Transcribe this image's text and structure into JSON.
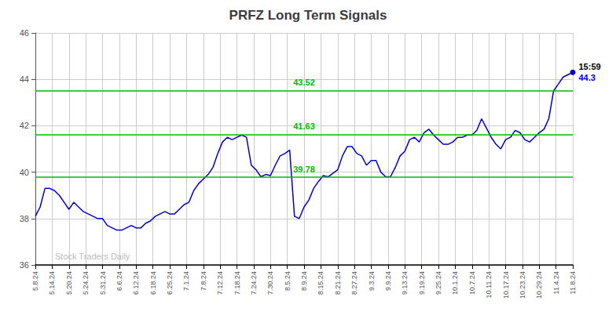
{
  "chart_data": {
    "type": "line",
    "title": "PRFZ Long Term Signals",
    "color": "#0000cc",
    "values": [
      38.1,
      38.5,
      39.3,
      39.3,
      39.2,
      39.0,
      38.7,
      38.4,
      38.7,
      38.5,
      38.3,
      38.2,
      38.1,
      38.0,
      38.0,
      37.7,
      37.6,
      37.5,
      37.5,
      37.6,
      37.7,
      37.6,
      37.6,
      37.8,
      37.9,
      38.1,
      38.2,
      38.3,
      38.2,
      38.2,
      38.4,
      38.6,
      38.7,
      39.2,
      39.5,
      39.7,
      39.9,
      40.2,
      40.8,
      41.3,
      41.5,
      41.4,
      41.5,
      41.6,
      41.5,
      40.3,
      40.1,
      39.8,
      39.9,
      39.85,
      40.3,
      40.7,
      40.8,
      40.95,
      38.1,
      38.0,
      38.5,
      38.8,
      39.3,
      39.6,
      39.85,
      39.8,
      39.95,
      40.1,
      40.7,
      41.1,
      41.1,
      40.8,
      40.7,
      40.3,
      40.5,
      40.5,
      40.0,
      39.8,
      39.8,
      40.2,
      40.7,
      40.9,
      41.4,
      41.5,
      41.3,
      41.7,
      41.85,
      41.6,
      41.4,
      41.2,
      41.2,
      41.3,
      41.5,
      41.5,
      41.6,
      41.6,
      41.8,
      42.3,
      41.9,
      41.5,
      41.2,
      41.0,
      41.4,
      41.5,
      41.8,
      41.7,
      41.4,
      41.3,
      41.5,
      41.7,
      41.85,
      42.3,
      43.5,
      43.8,
      44.1,
      44.2,
      44.3
    ],
    "xlim": [
      0,
      32
    ],
    "xticks": [
      {
        "value": 0,
        "label": "5.8.24"
      },
      {
        "value": 1,
        "label": "5.14.24"
      },
      {
        "value": 2,
        "label": "5.20.24"
      },
      {
        "value": 3,
        "label": "5.24.24"
      },
      {
        "value": 4,
        "label": "5.31.24"
      },
      {
        "value": 5,
        "label": "6.6.24"
      },
      {
        "value": 6,
        "label": "6.12.24"
      },
      {
        "value": 7,
        "label": "6.18.24"
      },
      {
        "value": 8,
        "label": "6.25.24"
      },
      {
        "value": 9,
        "label": "7.1.24"
      },
      {
        "value": 10,
        "label": "7.8.24"
      },
      {
        "value": 11,
        "label": "7.12.24"
      },
      {
        "value": 12,
        "label": "7.18.24"
      },
      {
        "value": 13,
        "label": "7.24.24"
      },
      {
        "value": 14,
        "label": "7.30.24"
      },
      {
        "value": 15,
        "label": "8.5.24"
      },
      {
        "value": 16,
        "label": "8.9.24"
      },
      {
        "value": 17,
        "label": "8.15.24"
      },
      {
        "value": 18,
        "label": "8.21.24"
      },
      {
        "value": 19,
        "label": "8.27.24"
      },
      {
        "value": 20,
        "label": "9.3.24"
      },
      {
        "value": 21,
        "label": "9.9.24"
      },
      {
        "value": 22,
        "label": "9.13.24"
      },
      {
        "value": 23,
        "label": "9.19.24"
      },
      {
        "value": 24,
        "label": "9.25.24"
      },
      {
        "value": 25,
        "label": "10.1.24"
      },
      {
        "value": 26,
        "label": "10.7.24"
      },
      {
        "value": 27,
        "label": "10.11.24"
      },
      {
        "value": 28,
        "label": "10.17.24"
      },
      {
        "value": 29,
        "label": "10.23.24"
      },
      {
        "value": 30,
        "label": "10.29.24"
      },
      {
        "value": 31,
        "label": "11.4.24"
      },
      {
        "value": 32,
        "label": "11.8.24"
      }
    ],
    "ylim": [
      36,
      46
    ],
    "yticks": [
      36,
      38,
      40,
      42,
      44,
      46
    ],
    "grid": true,
    "annotations": [
      {
        "type": "hline",
        "y": 43.52,
        "text": "43.52",
        "color": "#00bb00"
      },
      {
        "type": "hline",
        "y": 41.63,
        "text": "41.63",
        "color": "#00bb00"
      },
      {
        "type": "hline",
        "y": 39.78,
        "text": "39.78",
        "color": "#00bb00"
      },
      {
        "type": "watermark",
        "text": "Stock Traders Daily",
        "color": "#bbbbbb"
      },
      {
        "type": "last_time",
        "text": "15:59"
      },
      {
        "type": "last_price",
        "text": "44.3",
        "color": "#0000cc"
      }
    ]
  }
}
